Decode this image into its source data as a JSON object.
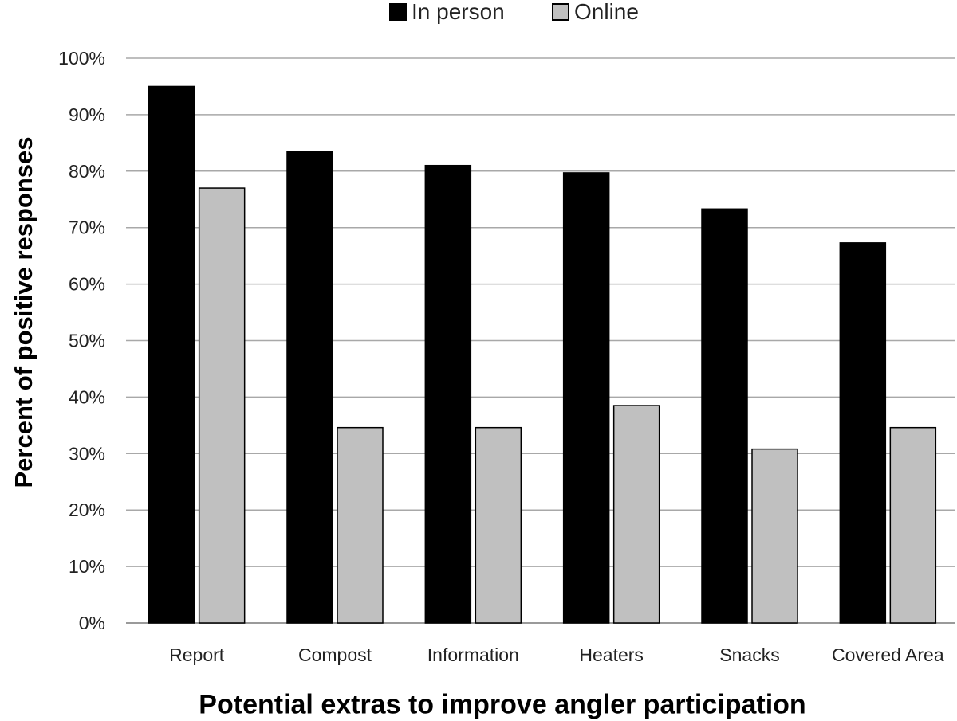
{
  "chart_data": {
    "type": "bar",
    "title": "",
    "xlabel": "Potential extras to improve angler participation",
    "ylabel": "Percent of positive responses",
    "categories": [
      "Report",
      "Compost",
      "Information",
      "Heaters",
      "Snacks",
      "Covered Area"
    ],
    "series": [
      {
        "name": "In person",
        "color": "#000000",
        "values": [
          95.0,
          83.5,
          81.0,
          79.7,
          73.3,
          67.3
        ]
      },
      {
        "name": "Online",
        "color": "#c0c0c0",
        "values": [
          77.0,
          34.6,
          34.6,
          38.5,
          30.8,
          34.6
        ]
      }
    ],
    "ylim": [
      0,
      100
    ],
    "yticks": [
      "0%",
      "10%",
      "20%",
      "30%",
      "40%",
      "50%",
      "60%",
      "70%",
      "80%",
      "90%",
      "100%"
    ],
    "grid": true,
    "legend_position": "top-center"
  }
}
